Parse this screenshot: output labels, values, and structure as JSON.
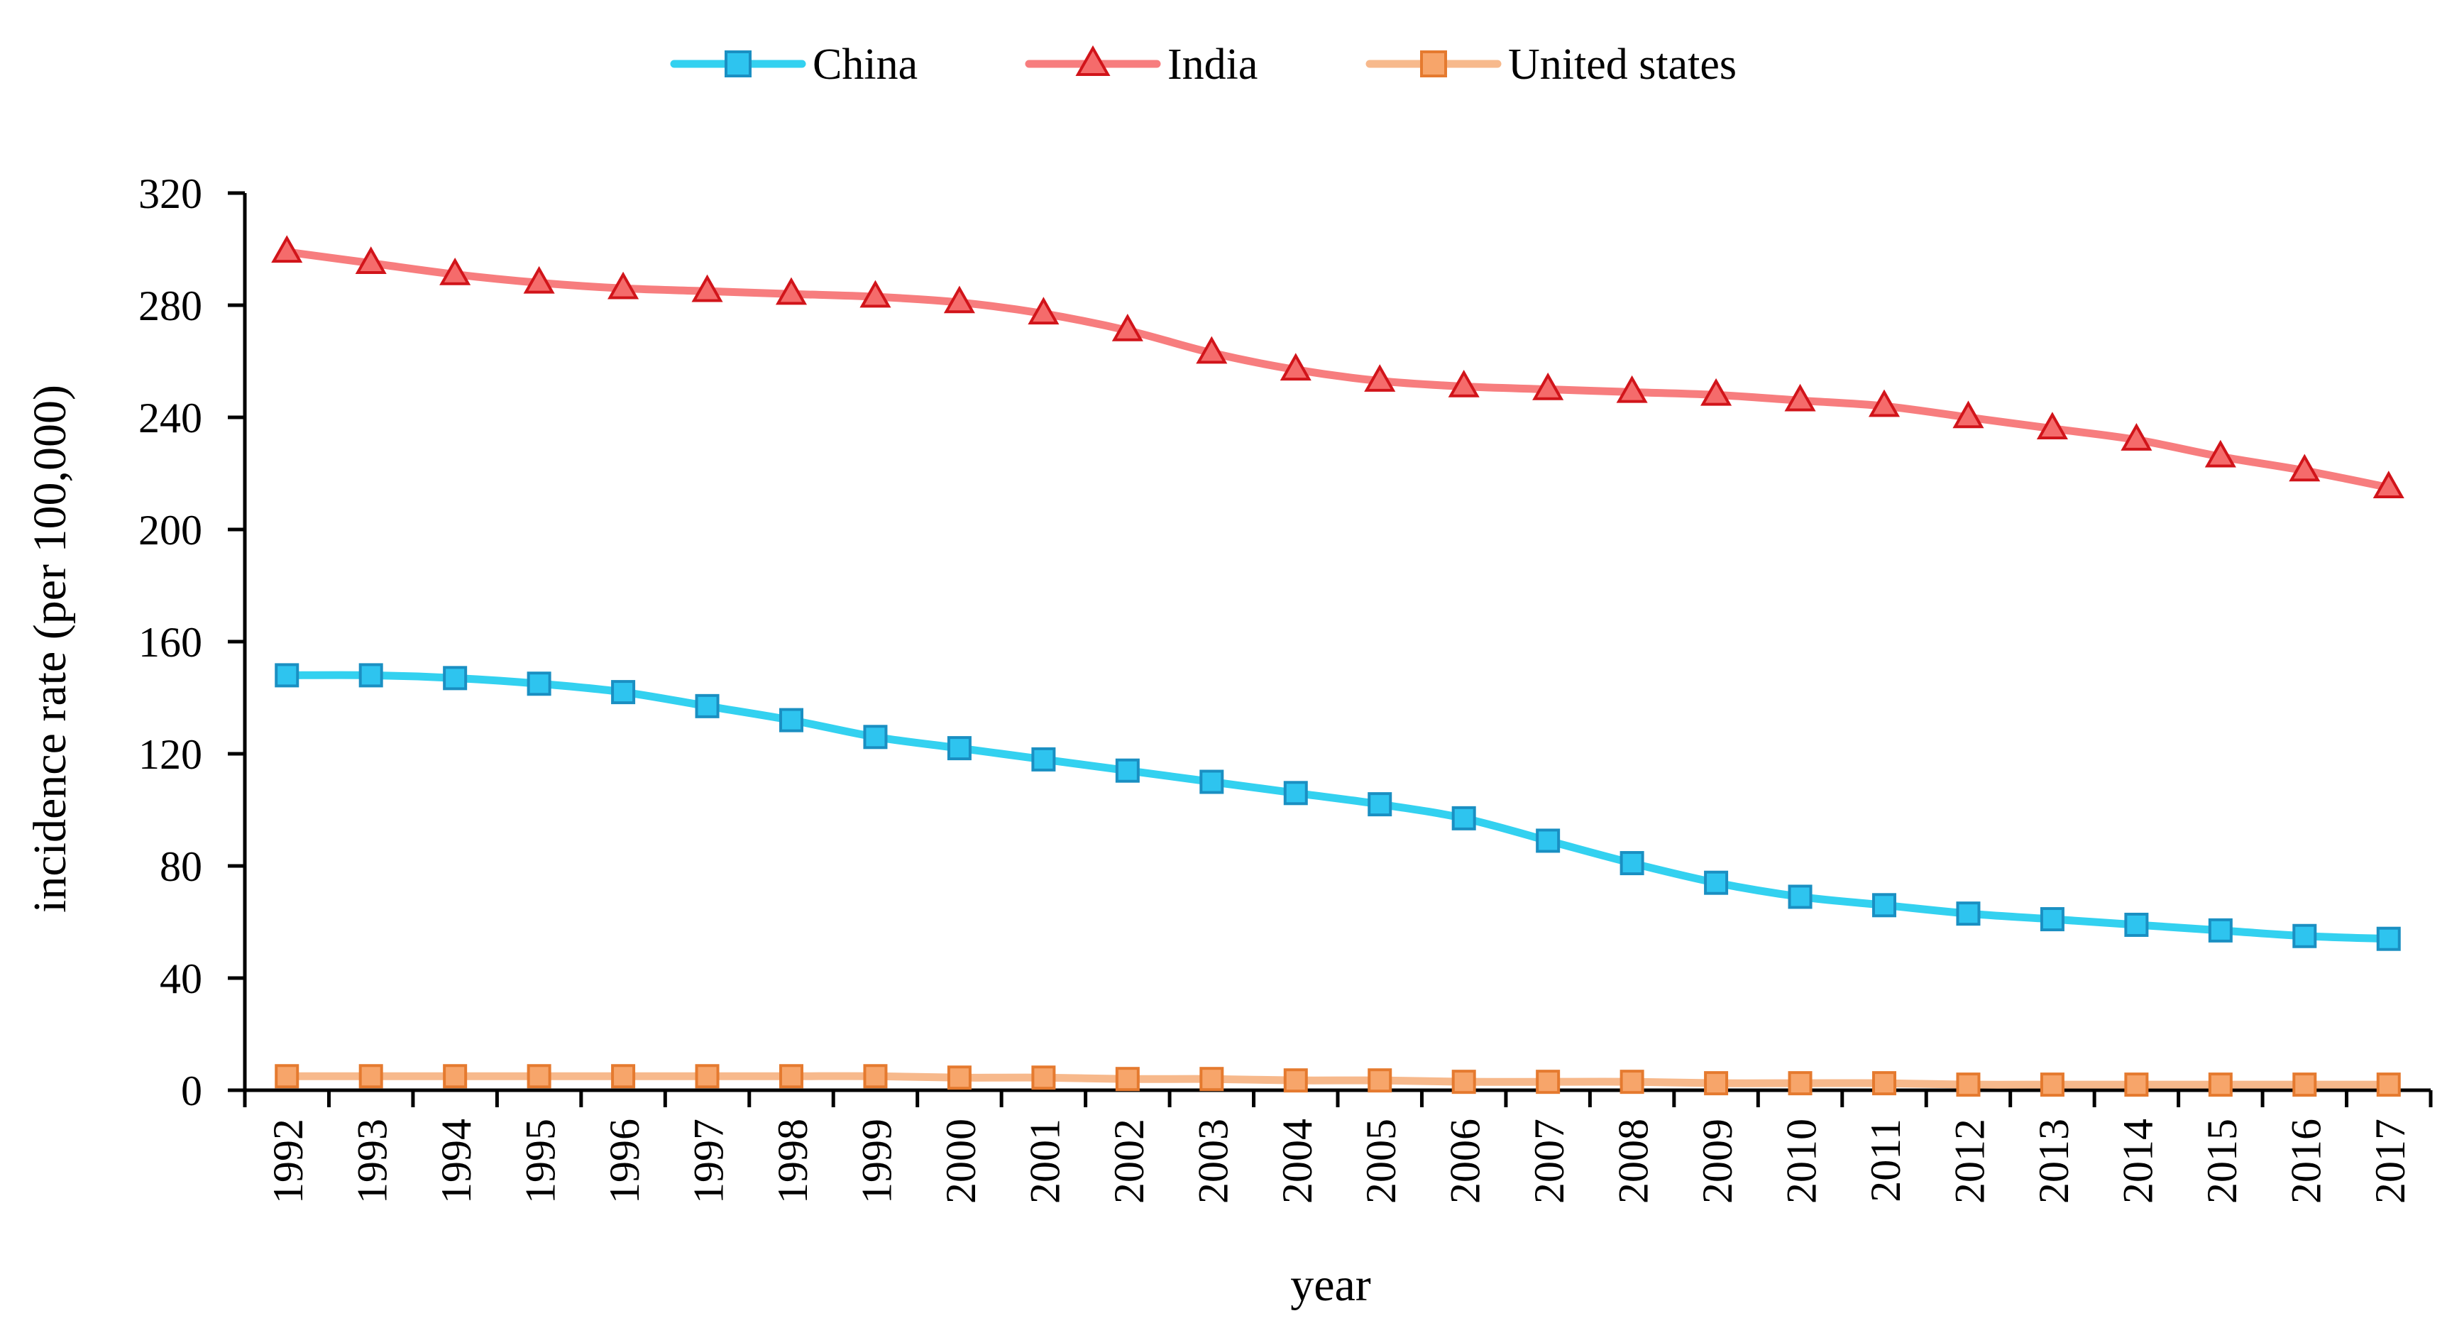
{
  "chart_data": {
    "type": "line",
    "title": "",
    "xlabel": "year",
    "ylabel": "incidence rate (per 100,000)",
    "ylim": [
      0,
      320
    ],
    "yticks": [
      0,
      40,
      80,
      120,
      160,
      200,
      240,
      280,
      320
    ],
    "grid": false,
    "legend_position": "top-center",
    "categories": [
      "1992",
      "1993",
      "1994",
      "1995",
      "1996",
      "1997",
      "1998",
      "1999",
      "2000",
      "2001",
      "2002",
      "2003",
      "2004",
      "2005",
      "2006",
      "2007",
      "2008",
      "2009",
      "2010",
      "2011",
      "2012",
      "2013",
      "2014",
      "2015",
      "2016",
      "2017"
    ],
    "series": [
      {
        "name": "China",
        "marker": "square",
        "line_color": "#33d1f0",
        "marker_fill": "#2ec4ef",
        "marker_stroke": "#1a8fc2",
        "values": [
          148,
          148,
          147,
          145,
          142,
          137,
          132,
          126,
          122,
          118,
          114,
          110,
          106,
          102,
          97,
          89,
          81,
          74,
          69,
          66,
          63,
          61,
          59,
          57,
          55,
          54
        ]
      },
      {
        "name": "India",
        "marker": "triangle",
        "line_color": "#f77d7e",
        "marker_fill": "#f56b6b",
        "marker_stroke": "#d1141a",
        "values": [
          299,
          295,
          291,
          288,
          286,
          285,
          284,
          283,
          281,
          277,
          271,
          263,
          257,
          253,
          251,
          250,
          249,
          248,
          246,
          244,
          240,
          236,
          232,
          226,
          221,
          215
        ]
      },
      {
        "name": "United states",
        "marker": "square",
        "line_color": "#f7b98c",
        "marker_fill": "#f7a56a",
        "marker_stroke": "#e57a2f",
        "values": [
          5,
          5,
          5,
          5,
          5,
          5,
          5,
          5,
          4.5,
          4.5,
          4,
          4,
          3.5,
          3.5,
          3,
          3,
          3,
          2.5,
          2.5,
          2.5,
          2,
          2,
          2,
          2,
          2,
          2
        ]
      }
    ]
  }
}
